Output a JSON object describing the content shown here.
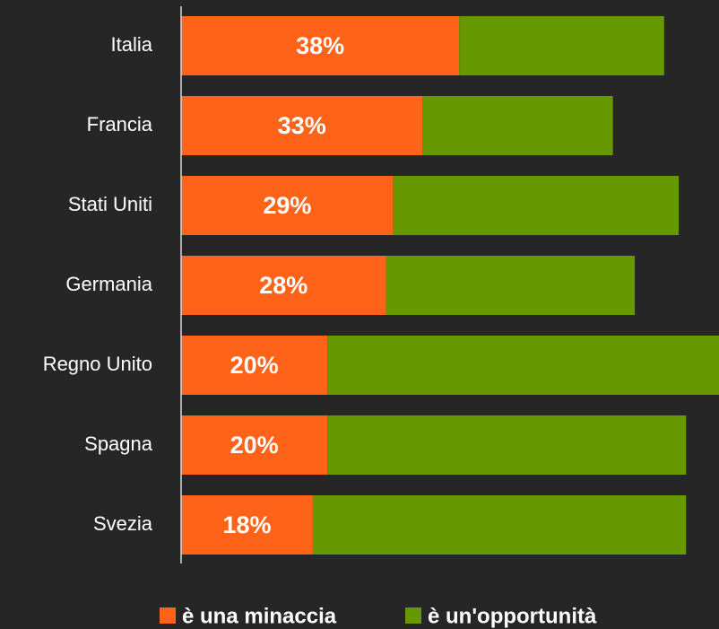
{
  "chart_data": {
    "type": "stacked-bar-horizontal",
    "categories": [
      "Italia",
      "Francia",
      "Stati Uniti",
      "Germania",
      "Regno Unito",
      "Spagna",
      "Svezia"
    ],
    "series": [
      {
        "name": "è una minaccia",
        "color": "#ff6319",
        "values": [
          38,
          33,
          29,
          28,
          20,
          20,
          18
        ],
        "value_labels": [
          "38%",
          "33%",
          "29%",
          "28%",
          "20%",
          "20%",
          "18%"
        ]
      },
      {
        "name": "è un'opportunità",
        "color": "#669900",
        "values": [
          28,
          26,
          39,
          34,
          54,
          49,
          51
        ]
      }
    ],
    "xlim": [
      0,
      73.5
    ],
    "legend": "bottom"
  }
}
